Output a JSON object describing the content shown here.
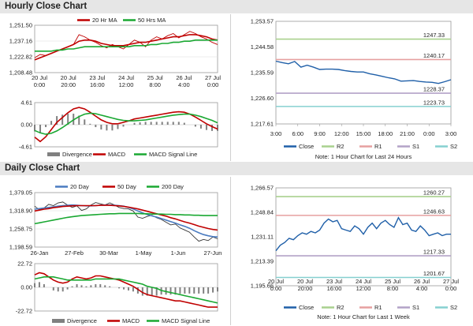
{
  "sections": {
    "hourly_title": "Hourly Close Chart",
    "daily_title": "Daily Close Chart"
  },
  "colors": {
    "close": "#1f5fa8",
    "ma20": "#c00000",
    "ma50": "#1aa832",
    "ma200": "#1aa832",
    "ma20_daily": "#4a7bc0",
    "ma50_daily": "#c00000",
    "r2": "#a9d18e",
    "r1": "#e6a0a0",
    "s1": "#b3a2c7",
    "s2": "#86d0d0",
    "divergence": "#808080",
    "macd": "#c00000",
    "signal": "#1aa832"
  },
  "chart_data": [
    {
      "id": "hourly_ma",
      "type": "line",
      "yticks": [
        "1,251.50",
        "1,237.16",
        "1,222.82",
        "1,208.48"
      ],
      "ylim": [
        1208.48,
        1251.5
      ],
      "xticks": [
        "20 Jul\n0:00",
        "20 Jul\n20:00",
        "23 Jul\n16:00",
        "24 Jul\n12:00",
        "25 Jul\n8:00",
        "26 Jul\n4:00",
        "27 Jul\n0:00"
      ],
      "legend": [
        "20 Hr MA",
        "50 Hrs MA"
      ],
      "series": [
        {
          "name": "Close",
          "values": [
            1222,
            1225,
            1224,
            1226,
            1228,
            1230,
            1232,
            1234,
            1243,
            1241,
            1238,
            1236,
            1233,
            1231,
            1234,
            1232,
            1230,
            1234,
            1238,
            1236,
            1232,
            1238,
            1241,
            1239,
            1242,
            1244,
            1240,
            1243,
            1246,
            1244,
            1241,
            1239,
            1236,
            1234
          ]
        },
        {
          "name": "20 Hr MA",
          "values": [
            1220,
            1222,
            1224,
            1226,
            1228,
            1230,
            1232,
            1234,
            1237,
            1238,
            1238,
            1237,
            1235,
            1234,
            1233,
            1233,
            1233,
            1234,
            1235,
            1236,
            1236,
            1237,
            1238,
            1239,
            1240,
            1241,
            1241,
            1242,
            1243,
            1243,
            1242,
            1241,
            1239,
            1238
          ]
        },
        {
          "name": "50 Hrs MA",
          "values": [
            1228,
            1228,
            1228,
            1228,
            1229,
            1229,
            1230,
            1230,
            1231,
            1232,
            1232,
            1232,
            1232,
            1232,
            1232,
            1232,
            1232,
            1232,
            1233,
            1233,
            1233,
            1234,
            1234,
            1235,
            1235,
            1236,
            1236,
            1237,
            1237,
            1238,
            1238,
            1238,
            1238,
            1238
          ]
        }
      ]
    },
    {
      "id": "hourly_macd",
      "type": "line",
      "yticks": [
        "4.61",
        "0.00",
        "-4.61"
      ],
      "ylim": [
        -4.61,
        4.61
      ],
      "legend": [
        "Divergence",
        "MACD",
        "MACD Signal Line"
      ],
      "series": [
        {
          "name": "MACD",
          "values": [
            -2.6,
            -3.5,
            -2.5,
            -1,
            0.5,
            1.5,
            2.5,
            3.3,
            3.6,
            3.3,
            2.6,
            1.8,
            1,
            0.5,
            0.2,
            0.2,
            0.5,
            0.8,
            1.2,
            1.4,
            1.6,
            1.8,
            2,
            2.2,
            2.4,
            2.6,
            2.7,
            2.6,
            2.2,
            1.6,
            0.9,
            0.2,
            -0.4,
            -0.9
          ]
        },
        {
          "name": "MACD Signal Line",
          "values": [
            -1.2,
            -1.7,
            -2,
            -1.8,
            -1.3,
            -0.6,
            0.2,
            1,
            1.7,
            2.2,
            2.4,
            2.3,
            2,
            1.7,
            1.4,
            1.1,
            0.9,
            0.8,
            0.8,
            0.9,
            1,
            1.2,
            1.4,
            1.6,
            1.8,
            2,
            2.1,
            2.2,
            2.2,
            2,
            1.7,
            1.3,
            0.9,
            0.4
          ]
        },
        {
          "name": "Divergence",
          "values": [
            -1.4,
            -1.8,
            -0.5,
            0.8,
            1.8,
            2.1,
            2.3,
            2.3,
            1.9,
            1.1,
            0.2,
            -0.5,
            -1,
            -1.2,
            -1.2,
            -0.9,
            -0.4,
            0,
            0.4,
            0.5,
            0.6,
            0.6,
            0.6,
            0.6,
            0.6,
            0.6,
            0.6,
            0.4,
            0,
            -0.4,
            -0.8,
            -1.1,
            -1.3,
            -1.3
          ]
        }
      ]
    },
    {
      "id": "hourly_pivot",
      "type": "line",
      "yticks": [
        "1,253.57",
        "1,244.58",
        "1,235.59",
        "1,226.60",
        "1,217.61"
      ],
      "ylim": [
        1217.61,
        1253.57
      ],
      "xticks": [
        "3:00",
        "6:00",
        "9:00",
        "12:00",
        "15:00",
        "18:00",
        "21:00",
        "0:00",
        "3:00"
      ],
      "levels": [
        {
          "name": "R2",
          "value": 1247.33,
          "label": "1247.33"
        },
        {
          "name": "R1",
          "value": 1240.17,
          "label": "1240.17"
        },
        {
          "name": "S1",
          "value": 1228.37,
          "label": "1228.37"
        },
        {
          "name": "S2",
          "value": 1223.73,
          "label": "1223.73"
        }
      ],
      "legend": [
        "Close",
        "R2",
        "R1",
        "S1",
        "S2"
      ],
      "series": [
        {
          "name": "Close",
          "values": [
            1239.6,
            1239.1,
            1238.7,
            1239.5,
            1237.5,
            1238.2,
            1237.5,
            1236.7,
            1236.8,
            1236.8,
            1236.7,
            1236.3,
            1236.0,
            1235.8,
            1235.8,
            1235.2,
            1234.8,
            1234.3,
            1233.8,
            1233.4,
            1232.6,
            1232.7,
            1232.8,
            1232.5,
            1232.3,
            1232.2,
            1231.8,
            1232.4,
            1233.1
          ]
        }
      ],
      "note": "Note: 1 Hour Chart for Last 24 Hours"
    },
    {
      "id": "daily_ma",
      "type": "line",
      "yticks": [
        "1,379.05",
        "1,318.90",
        "1,258.75",
        "1,198.59"
      ],
      "ylim": [
        1198.59,
        1379.05
      ],
      "xticks": [
        "26-Jan",
        "27-Feb",
        "30-Mar",
        "1-May",
        "1-Jun",
        "27-Jun"
      ],
      "legend": [
        "20 Day",
        "50 Day",
        "200 Day"
      ],
      "series": [
        {
          "name": "Close",
          "values": [
            1334,
            1322,
            1328,
            1340,
            1336,
            1345,
            1348,
            1338,
            1330,
            1335,
            1320,
            1325,
            1338,
            1346,
            1342,
            1338,
            1345,
            1338,
            1330,
            1326,
            1325,
            1318,
            1298,
            1294,
            1300,
            1304,
            1296,
            1290,
            1281,
            1272,
            1275,
            1262,
            1255,
            1248,
            1232,
            1218,
            1224,
            1220,
            1232,
            1226
          ]
        },
        {
          "name": "20 Day",
          "values": [
            1324,
            1326,
            1328,
            1330,
            1332,
            1334,
            1336,
            1337,
            1338,
            1337,
            1336,
            1335,
            1335,
            1336,
            1337,
            1338,
            1338,
            1337,
            1336,
            1334,
            1330,
            1325,
            1318,
            1312,
            1306,
            1302,
            1298,
            1293,
            1288,
            1283,
            1278,
            1272,
            1267,
            1261,
            1253,
            1246,
            1240,
            1236,
            1233,
            1232
          ]
        },
        {
          "name": "50 Day",
          "values": [
            1318,
            1321,
            1324,
            1326,
            1329,
            1331,
            1333,
            1334,
            1335,
            1336,
            1336,
            1336,
            1336,
            1336,
            1337,
            1337,
            1337,
            1336,
            1335,
            1333,
            1331,
            1328,
            1325,
            1321,
            1317,
            1313,
            1309,
            1305,
            1301,
            1296,
            1292,
            1287,
            1282,
            1278,
            1273,
            1268,
            1264,
            1260,
            1257,
            1255
          ]
        },
        {
          "name": "200 Day",
          "values": [
            1276,
            1279,
            1282,
            1285,
            1288,
            1291,
            1294,
            1297,
            1299,
            1301,
            1303,
            1304,
            1305,
            1306,
            1307,
            1308,
            1309,
            1309,
            1310,
            1310,
            1310,
            1310,
            1310,
            1309,
            1309,
            1308,
            1308,
            1308,
            1307,
            1307,
            1306,
            1306,
            1305,
            1305,
            1304,
            1304,
            1303,
            1303,
            1303,
            1303
          ]
        }
      ]
    },
    {
      "id": "daily_macd",
      "type": "line",
      "yticks": [
        "22.72",
        "0.00",
        "-22.72"
      ],
      "ylim": [
        -22.72,
        22.72
      ],
      "legend": [
        "Divergence",
        "MACD",
        "MACD Signal Line"
      ],
      "series": [
        {
          "name": "MACD",
          "values": [
            12,
            14,
            13,
            10,
            7,
            5,
            4,
            5,
            8,
            10,
            9,
            8,
            9,
            11,
            11,
            10,
            9,
            8,
            7,
            5,
            3,
            1,
            -2,
            -5,
            -7,
            -8,
            -9,
            -10,
            -11,
            -12,
            -13,
            -13,
            -14,
            -15,
            -16,
            -17,
            -18,
            -19,
            -19,
            -19
          ]
        },
        {
          "name": "MACD Signal Line",
          "values": [
            8,
            9,
            10,
            10,
            10,
            9,
            8,
            7,
            7,
            7,
            7,
            7,
            7,
            8,
            8,
            8,
            8,
            8,
            8,
            7,
            6,
            5,
            4,
            3,
            1,
            0,
            -1,
            -3,
            -4,
            -5,
            -6,
            -7,
            -8,
            -9,
            -10,
            -11,
            -12,
            -13,
            -14,
            -15
          ]
        },
        {
          "name": "Divergence",
          "values": [
            4,
            5,
            3,
            0,
            -3,
            -4,
            -4,
            -2,
            1,
            3,
            2,
            1,
            2,
            3,
            3,
            2,
            1,
            0,
            -1,
            -2,
            -3,
            -4,
            -6,
            -8,
            -8,
            -8,
            -8,
            -7,
            -7,
            -7,
            -7,
            -6,
            -6,
            -6,
            -6,
            -6,
            -6,
            -6,
            -5,
            -4
          ]
        }
      ]
    },
    {
      "id": "daily_pivot",
      "type": "line",
      "yticks": [
        "1,266.57",
        "1,248.84",
        "1,231.11",
        "1,213.39",
        "1,195.66"
      ],
      "ylim": [
        1195.66,
        1266.57
      ],
      "xticks": [
        "20 Jul\n0:00",
        "20 Jul\n20:00",
        "23 Jul\n16:00",
        "24 Jul\n12:00",
        "25 Jul\n8:00",
        "26 Jul\n4:00",
        "27 Jul\n0:00"
      ],
      "levels": [
        {
          "name": "R2",
          "value": 1260.27,
          "label": "1260.27"
        },
        {
          "name": "R1",
          "value": 1246.63,
          "label": "1246.63"
        },
        {
          "name": "S1",
          "value": 1217.33,
          "label": "1217.33"
        },
        {
          "name": "S2",
          "value": 1201.67,
          "label": "1201.67"
        }
      ],
      "legend": [
        "Close",
        "R2",
        "R1",
        "S1",
        "S2"
      ],
      "series": [
        {
          "name": "Close",
          "values": [
            1221,
            1225,
            1227,
            1230,
            1229,
            1232,
            1234,
            1233,
            1235,
            1234,
            1236,
            1241,
            1244,
            1242,
            1243,
            1237,
            1236,
            1235,
            1239,
            1237,
            1233,
            1238,
            1241,
            1237,
            1241,
            1243,
            1240,
            1238,
            1245,
            1240,
            1241,
            1236,
            1235,
            1239,
            1236,
            1232,
            1233,
            1234,
            1232,
            1233,
            1233
          ]
        }
      ],
      "note": "Note: 1 Hour Chart for Last 1 Week"
    }
  ]
}
